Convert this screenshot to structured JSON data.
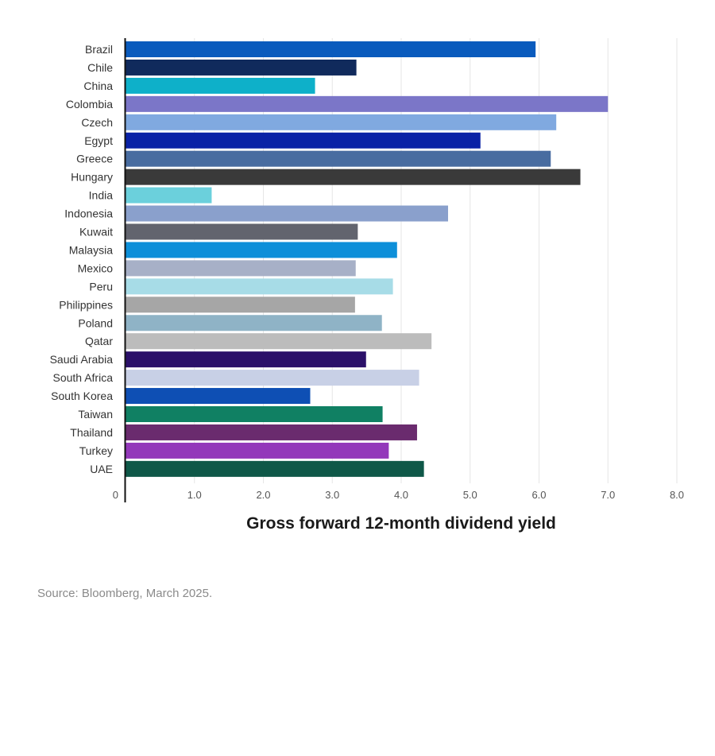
{
  "chart_data": {
    "type": "bar",
    "orientation": "horizontal",
    "title": "",
    "xlabel": "Gross forward 12-month dividend yield",
    "ylabel": "",
    "xlim": [
      0,
      8.0
    ],
    "xticks": [
      "0",
      "1.0",
      "2.0",
      "3.0",
      "4.0",
      "5.0",
      "6.0",
      "7.0",
      "8.0"
    ],
    "grid": true,
    "categories": [
      "Brazil",
      "Chile",
      "China",
      "Colombia",
      "Czech",
      "Egypt",
      "Greece",
      "Hungary",
      "India",
      "Indonesia",
      "Kuwait",
      "Malaysia",
      "Mexico",
      "Peru",
      "Philippines",
      "Poland",
      "Qatar",
      "Saudi Arabia",
      "South Africa",
      "South Korea",
      "Taiwan",
      "Thailand",
      "Turkey",
      "UAE"
    ],
    "values": [
      5.95,
      3.35,
      2.75,
      7.0,
      6.25,
      5.15,
      6.17,
      6.6,
      1.25,
      4.68,
      3.37,
      3.94,
      3.34,
      3.88,
      3.33,
      3.72,
      4.44,
      3.49,
      4.26,
      2.68,
      3.73,
      4.23,
      3.82,
      4.33
    ],
    "colors": [
      "#0a5bbd",
      "#102a5c",
      "#0eb0c9",
      "#7b76c8",
      "#80a9e0",
      "#0a22a6",
      "#486ca0",
      "#3a3a3a",
      "#6bd0dc",
      "#8aa0cc",
      "#62646e",
      "#0d8fd9",
      "#a7b0c7",
      "#a7dce7",
      "#a6a6a6",
      "#8fb3c6",
      "#bcbcbc",
      "#2b1069",
      "#c8d0e6",
      "#0e4fb4",
      "#108063",
      "#6a2b6e",
      "#9338ba",
      "#0f5848"
    ]
  },
  "source": "Source: Bloomberg, March 2025."
}
